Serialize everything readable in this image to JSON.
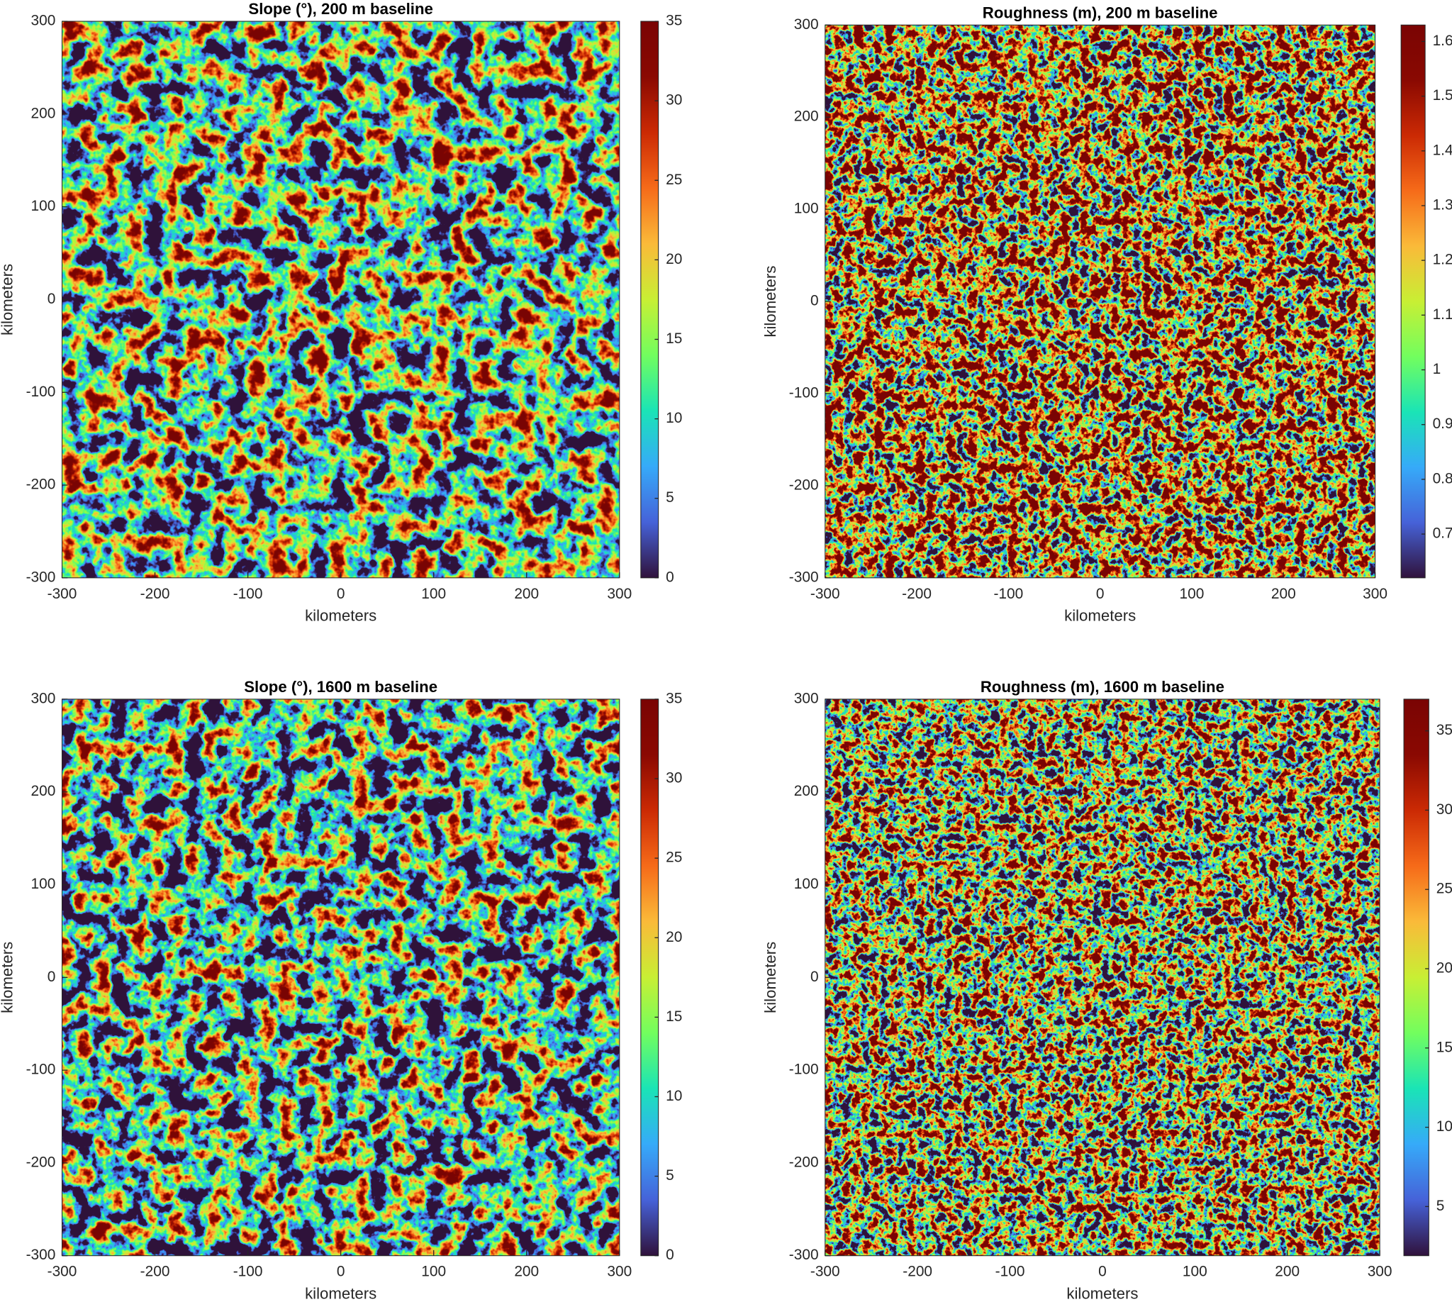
{
  "chart_data": [
    {
      "type": "heatmap",
      "title": "Slope (°), 200 m baseline",
      "xlabel": "kilometers",
      "ylabel": "kilometers",
      "xlim": [
        -300,
        300
      ],
      "ylim": [
        -300,
        300
      ],
      "xticks": [
        -300,
        -200,
        -100,
        0,
        100,
        200,
        300
      ],
      "yticks": [
        -300,
        -200,
        -100,
        0,
        100,
        200,
        300
      ],
      "colormap": "turbo",
      "colorbar": {
        "lim": [
          0,
          35
        ],
        "ticks": [
          0,
          5,
          10,
          15,
          20,
          25,
          30,
          35
        ]
      }
    },
    {
      "type": "heatmap",
      "title": "Roughness (m), 200 m baseline",
      "xlabel": "kilometers",
      "ylabel": "kilometers",
      "xlim": [
        -300,
        300
      ],
      "ylim": [
        -300,
        300
      ],
      "xticks": [
        -300,
        -200,
        -100,
        0,
        100,
        200,
        300
      ],
      "yticks": [
        -300,
        -200,
        -100,
        0,
        100,
        200,
        300
      ],
      "colormap": "turbo",
      "colorbar": {
        "lim": [
          0.62,
          1.63
        ],
        "ticks": [
          0.7,
          0.8,
          0.9,
          1,
          1.1,
          1.2,
          1.3,
          1.4,
          1.5,
          1.6
        ]
      }
    },
    {
      "type": "heatmap",
      "title": "Slope (°), 1600 m baseline",
      "xlabel": "kilometers",
      "ylabel": "kilometers",
      "xlim": [
        -300,
        300
      ],
      "ylim": [
        -300,
        300
      ],
      "xticks": [
        -300,
        -200,
        -100,
        0,
        100,
        200,
        300
      ],
      "yticks": [
        -300,
        -200,
        -100,
        0,
        100,
        200,
        300
      ],
      "colormap": "turbo",
      "colorbar": {
        "lim": [
          0,
          35
        ],
        "ticks": [
          0,
          5,
          10,
          15,
          20,
          25,
          30,
          35
        ]
      }
    },
    {
      "type": "heatmap",
      "title": "Roughness (m), 1600 m baseline",
      "xlabel": "kilometers",
      "ylabel": "kilometers",
      "xlim": [
        -300,
        300
      ],
      "ylim": [
        -300,
        300
      ],
      "xticks": [
        -300,
        -200,
        -100,
        0,
        100,
        200,
        300
      ],
      "yticks": [
        -300,
        -200,
        -100,
        0,
        100,
        200,
        300
      ],
      "colormap": "turbo",
      "colorbar": {
        "lim": [
          1.9,
          37
        ],
        "ticks": [
          5,
          10,
          15,
          20,
          25,
          30,
          35
        ]
      }
    }
  ]
}
